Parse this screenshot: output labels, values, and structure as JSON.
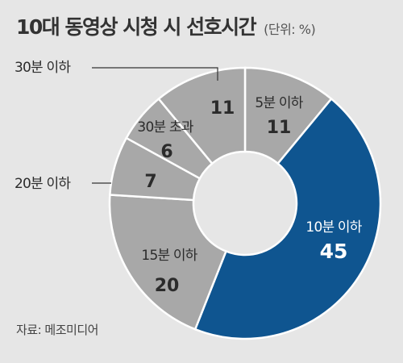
{
  "chart_data": {
    "type": "pie",
    "title": "10대 동영상 시청 시 선호시간",
    "unit": "(단위: %)",
    "slices": [
      {
        "label": "5분 이하",
        "value": 11,
        "color": "#a8a8a8"
      },
      {
        "label": "10분 이하",
        "value": 45,
        "color": "#0f5590"
      },
      {
        "label": "15분 이하",
        "value": 20,
        "color": "#a8a8a8"
      },
      {
        "label": "20분 이하",
        "value": 7,
        "color": "#a8a8a8"
      },
      {
        "label": "30분 초과",
        "value": 6,
        "color": "#a8a8a8"
      },
      {
        "label": "30분 이하",
        "value": 11,
        "color": "#a8a8a8"
      }
    ]
  },
  "source": "자료: 메조미디어"
}
